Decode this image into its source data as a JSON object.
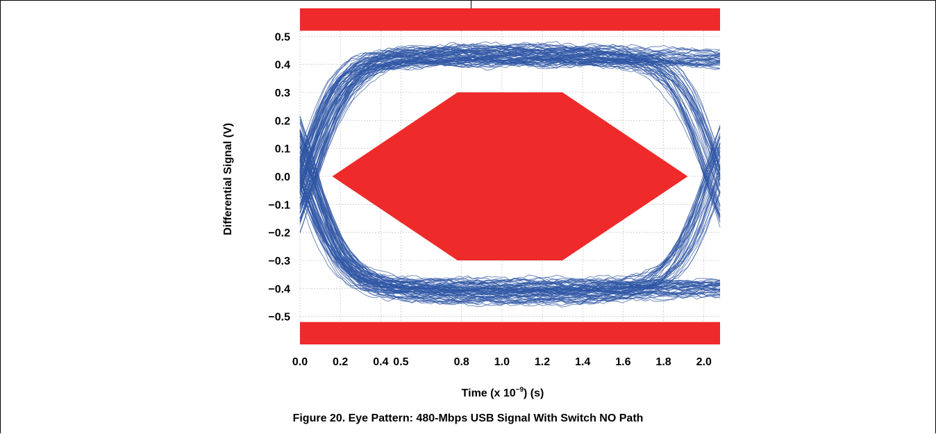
{
  "chart_data": {
    "type": "eye-diagram",
    "title": "Figure 20. Eye Pattern: 480-Mbps USB Signal With Switch NO Path",
    "xlabel_pre": "Time (x 10",
    "xlabel_exp": "−9",
    "xlabel_post": ") (s)",
    "ylabel": "Differential Signal (V)",
    "xlim": [
      0.0,
      2.08
    ],
    "ylim": [
      -0.6,
      0.6
    ],
    "x_ticks": [
      0.0,
      0.2,
      0.4,
      0.5,
      0.8,
      1.0,
      1.2,
      1.4,
      1.6,
      1.8,
      2.0
    ],
    "x_tick_labels": [
      "0.0",
      "0.2",
      "0.4",
      "0.5",
      "0.8",
      "1.0",
      "1.2",
      "1.4",
      "1.6",
      "1.8",
      "2.0"
    ],
    "y_ticks": [
      0.5,
      0.4,
      0.3,
      0.2,
      0.1,
      0.0,
      -0.1,
      -0.2,
      -0.3,
      -0.4,
      -0.5
    ],
    "y_tick_labels": [
      "0.5",
      "0.4",
      "0.3",
      "0.2",
      "0.1",
      "0.0",
      "−0.1",
      "−0.2",
      "−0.3",
      "−0.4",
      "−0.5"
    ],
    "grid": true,
    "mask_color": "#ee2a2a",
    "trace_color": "#2f55a4",
    "mask_top_band": [
      0.52,
      0.6
    ],
    "mask_bottom_band": [
      -0.6,
      -0.52
    ],
    "mask_hexagon": [
      [
        0.16,
        0.0
      ],
      [
        0.78,
        0.3
      ],
      [
        1.3,
        0.3
      ],
      [
        1.92,
        0.0
      ],
      [
        1.3,
        -0.3
      ],
      [
        0.78,
        -0.3
      ]
    ],
    "signal_high_level": 0.42,
    "signal_low_level": -0.4,
    "crossing_times": [
      0.03,
      2.05
    ],
    "unit_interval": 2.08
  }
}
